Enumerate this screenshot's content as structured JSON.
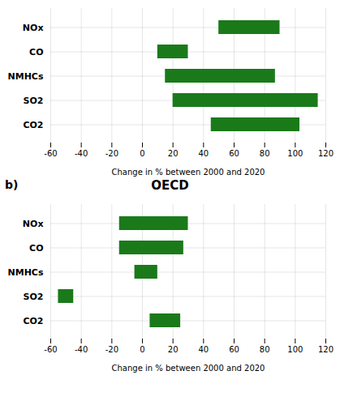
{
  "chart_data": [
    {
      "type": "bar",
      "orientation": "horizontal",
      "categories": [
        "NOx",
        "CO",
        "NMHCs",
        "SO2",
        "CO2"
      ],
      "values": [
        [
          50,
          90
        ],
        [
          10,
          30
        ],
        [
          15,
          87
        ],
        [
          20,
          115
        ],
        [
          45,
          103
        ]
      ],
      "color": "#1a7a1a",
      "xlim": [
        -60,
        120
      ],
      "xticks": [
        -60,
        -40,
        -20,
        0,
        20,
        40,
        60,
        80,
        100,
        120
      ],
      "xlabel": "Change in % between 2000 and 2020",
      "grid": true
    },
    {
      "type": "bar",
      "orientation": "horizontal",
      "title": "OECD",
      "annotations": [
        "b)"
      ],
      "categories": [
        "NOx",
        "CO",
        "NMHCs",
        "SO2",
        "CO2"
      ],
      "values": [
        [
          -15,
          30
        ],
        [
          -15,
          27
        ],
        [
          -5,
          10
        ],
        [
          -55,
          -45
        ],
        [
          5,
          25
        ]
      ],
      "color": "#1a7a1a",
      "xlim": [
        -60,
        120
      ],
      "xticks": [
        -60,
        -40,
        -20,
        0,
        20,
        40,
        60,
        80,
        100,
        120
      ],
      "xlabel": "Change in % between 2000 and 2020",
      "grid": true
    }
  ]
}
